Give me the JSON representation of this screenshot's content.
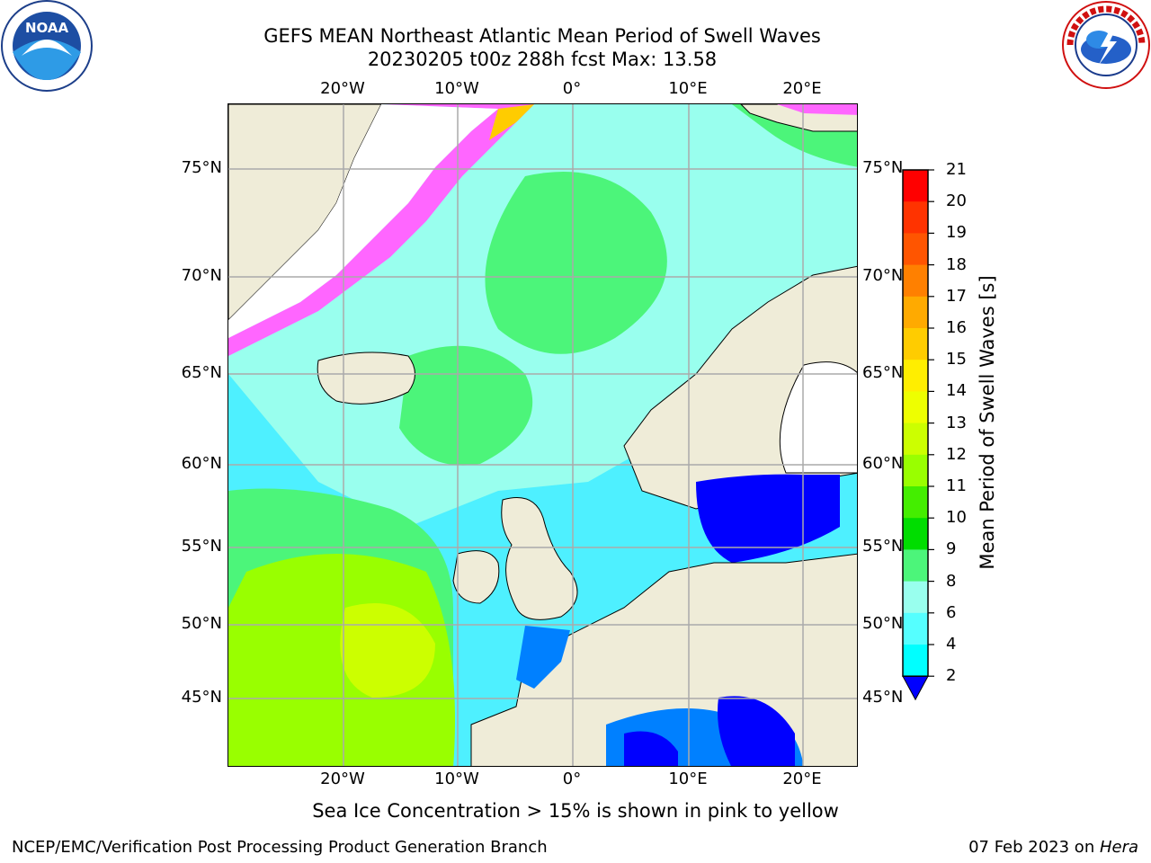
{
  "title": {
    "line1": "GEFS MEAN Northeast Atlantic Mean Period of Swell Waves",
    "line2": "20230205 t00z 288h fcst   Max: 13.58"
  },
  "logos": {
    "left": {
      "text": "NOAA",
      "ring_text": "NATIONAL OCEANIC AND ATMOSPHERIC ADMINISTRATION · U.S. DEPARTMENT OF COMMERCE"
    },
    "right": {
      "ring_text": "NATIONAL WEATHER SERVICE"
    }
  },
  "axes": {
    "lon_labels": [
      "20°W",
      "10°W",
      "0°",
      "10°E",
      "20°E"
    ],
    "lat_labels": [
      "75°N",
      "70°N",
      "65°N",
      "60°N",
      "55°N",
      "50°N",
      "45°N"
    ]
  },
  "colorbar": {
    "label": "Mean Period of Swell Waves [s]",
    "ticks": [
      "21",
      "20",
      "19",
      "18",
      "17",
      "16",
      "15",
      "14",
      "13",
      "12",
      "11",
      "10",
      "9",
      "8",
      "6",
      "4",
      "2"
    ],
    "colors": [
      "#ff0000",
      "#ff3300",
      "#ff5500",
      "#ff8000",
      "#ffaa00",
      "#ffcc00",
      "#ffee00",
      "#eeff00",
      "#ccff00",
      "#99ff00",
      "#44ee00",
      "#00dd00",
      "#4cf57a",
      "#99ffee",
      "#55ffff",
      "#00ffff",
      "#0080ff",
      "#0000ff"
    ],
    "extend_color": "#0000ff"
  },
  "colors": {
    "land": "#efecd8",
    "grid": "#aaaaaa",
    "ice": "#ff66ff"
  },
  "note": "Sea Ice Concentration > 15% is shown in pink to yellow",
  "footer": {
    "left": "NCEP/EMC/Verification Post Processing Product Generation Branch",
    "right_prefix": "07 Feb 2023 on ",
    "right_host": "Hera"
  }
}
